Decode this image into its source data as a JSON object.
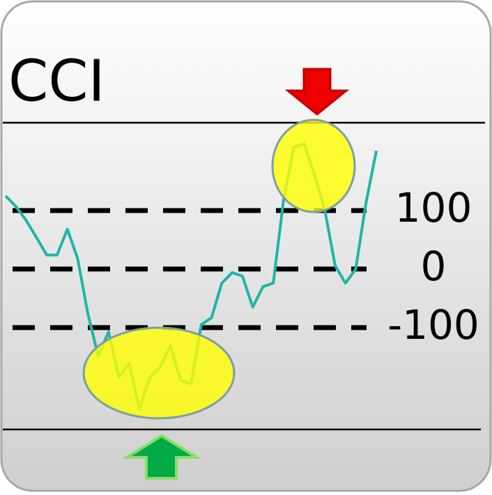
{
  "chart_data": {
    "type": "line",
    "title": "CCI",
    "x": [
      0,
      1,
      2,
      3,
      4,
      5,
      6,
      7,
      8,
      9,
      10,
      11,
      12,
      13,
      14,
      15,
      16,
      17,
      18,
      19,
      20,
      21,
      22,
      23,
      24,
      25,
      26,
      27,
      28,
      29,
      30,
      31,
      32,
      33,
      34,
      35,
      36
    ],
    "series": [
      {
        "color": "#1fb5a8",
        "values": [
          125,
          107,
          83,
          54,
          24,
          24,
          68,
          18,
          -77,
          -149,
          -107,
          -185,
          -161,
          -238,
          -185,
          -167,
          -131,
          -190,
          -196,
          -95,
          -83,
          -24,
          -6,
          -12,
          -65,
          -30,
          -24,
          119,
          208,
          214,
          161,
          101,
          6,
          -24,
          0,
          113,
          202
        ]
      }
    ],
    "ylim": [
      -274,
      250
    ],
    "yticks": [
      100,
      0,
      -100
    ],
    "grid": true
  }
}
